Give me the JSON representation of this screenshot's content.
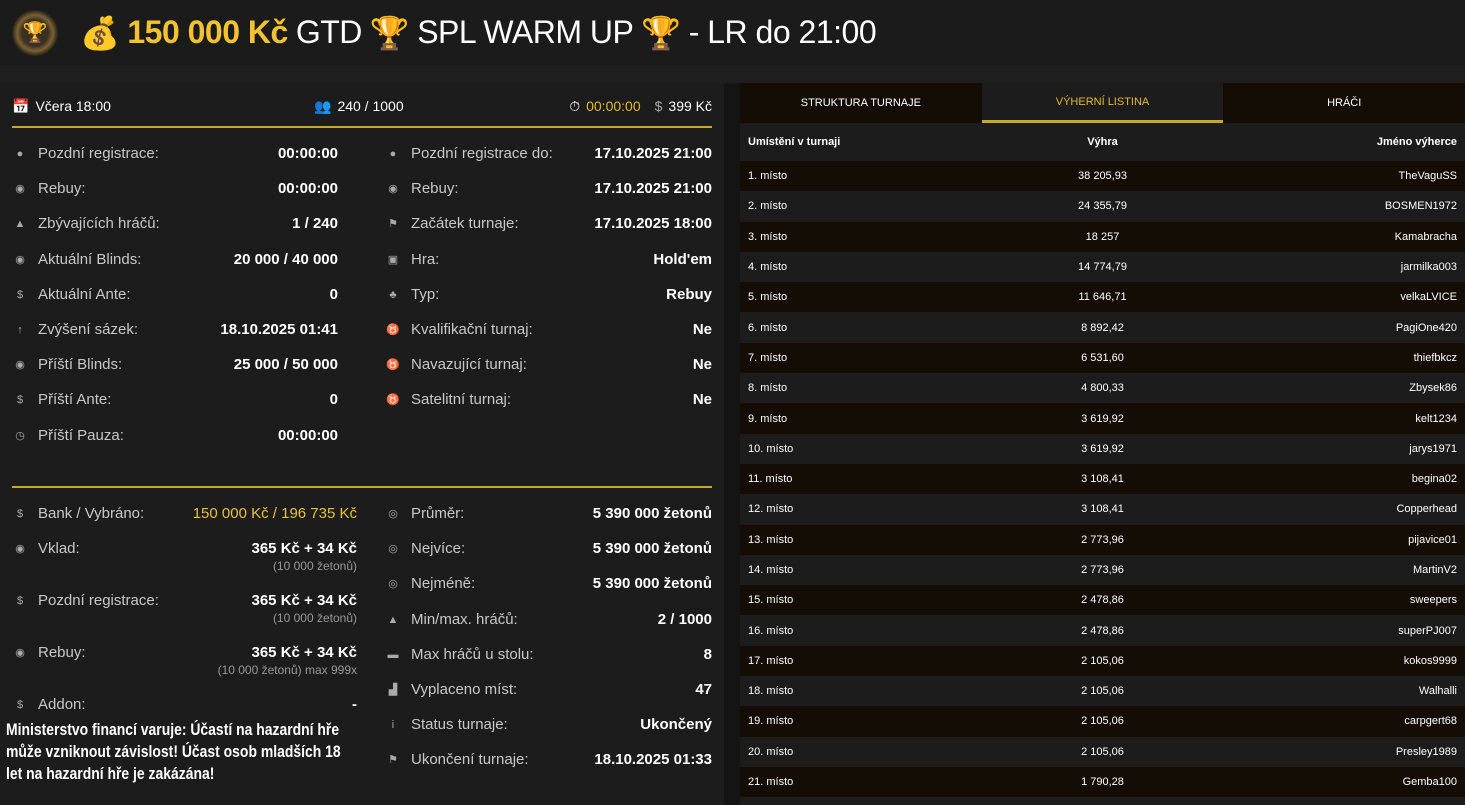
{
  "header": {
    "logo_icon": "trophy-chip-logo",
    "money_icon": "money-bag-icon",
    "guarantee": "150 000 Kč",
    "gtd": "GTD",
    "trophy_icon": "trophy-icon",
    "name": "SPL WARM UP",
    "suffix": "- LR do 21:00"
  },
  "topbar": {
    "date": "Včera 18:00",
    "players": "240 / 1000",
    "timer": "00:00:00",
    "buyin": "399 Kč"
  },
  "left_col": [
    {
      "icon": "user-clock-icon",
      "label": "Pozdní registrace:",
      "value": "00:00:00"
    },
    {
      "icon": "coins-icon",
      "label": "Rebuy:",
      "value": "00:00:00"
    },
    {
      "icon": "users-icon",
      "label": "Zbývajících hráčů:",
      "value": "1 / 240"
    },
    {
      "icon": "coins-icon",
      "label": "Aktuální Blinds:",
      "value": "20 000 / 40 000"
    },
    {
      "icon": "dollar-coin-icon",
      "label": "Aktuální Ante:",
      "value": "0"
    },
    {
      "icon": "arrow-up-circle-icon",
      "label": "Zvýšení sázek:",
      "value": "18.10.2025 01:41"
    },
    {
      "icon": "coins-icon",
      "label": "Příští Blinds:",
      "value": "25 000 / 50 000"
    },
    {
      "icon": "dollar-coin-icon",
      "label": "Příští Ante:",
      "value": "0"
    },
    {
      "icon": "clock-icon",
      "label": "Příští Pauza:",
      "value": "00:00:00"
    }
  ],
  "right_col": [
    {
      "icon": "user-clock-icon",
      "label": "Pozdní registrace do:",
      "value": "17.10.2025 21:00"
    },
    {
      "icon": "coins-icon",
      "label": "Rebuy:",
      "value": "17.10.2025 21:00"
    },
    {
      "icon": "flag-icon",
      "label": "Začátek turnaje:",
      "value": "17.10.2025 18:00"
    },
    {
      "icon": "cards-icon",
      "label": "Hra:",
      "value": "Hold'em"
    },
    {
      "icon": "suits-icon",
      "label": "Typ:",
      "value": "Rebuy"
    },
    {
      "icon": "medal-icon",
      "label": "Kvalifikační turnaj:",
      "value": "Ne"
    },
    {
      "icon": "medal-icon",
      "label": "Navazující turnaj:",
      "value": "Ne"
    },
    {
      "icon": "medal-icon",
      "label": "Satelitní turnaj:",
      "value": "Ne"
    }
  ],
  "bottom_left": [
    {
      "icon": "money-bag-icon",
      "label": "Bank / Vybráno:",
      "value": "150 000 Kč / 196 735 Kč",
      "sub": ""
    },
    {
      "icon": "coins-icon",
      "label": "Vklad:",
      "value": "365 Kč + 34 Kč",
      "sub": "(10 000 žetonů)"
    },
    {
      "icon": "dollar-coin-icon",
      "label": "Pozdní registrace:",
      "value": "365 Kč + 34 Kč",
      "sub": "(10 000 žetonů)"
    },
    {
      "icon": "coins-icon",
      "label": "Rebuy:",
      "value": "365 Kč + 34 Kč",
      "sub": "(10 000 žetonů) max 999x"
    },
    {
      "icon": "dollar-coin-icon",
      "label": "Addon:",
      "value": "-",
      "sub": ""
    }
  ],
  "bottom_right": [
    {
      "icon": "chip-icon",
      "label": "Průměr:",
      "value": "5 390 000 žetonů"
    },
    {
      "icon": "chip-icon",
      "label": "Nejvíce:",
      "value": "5 390 000 žetonů"
    },
    {
      "icon": "chip-icon",
      "label": "Nejméně:",
      "value": "5 390 000 žetonů"
    },
    {
      "icon": "users-icon",
      "label": "Min/max. hráčů:",
      "value": "2 / 1000"
    },
    {
      "icon": "table-icon",
      "label": "Max hráčů u stolu:",
      "value": "8"
    },
    {
      "icon": "podium-icon",
      "label": "Vyplaceno míst:",
      "value": "47"
    },
    {
      "icon": "info-icon",
      "label": "Status turnaje:",
      "value": "Ukončený"
    },
    {
      "icon": "flag-icon",
      "label": "Ukončení turnaje:",
      "value": "18.10.2025 01:33"
    }
  ],
  "warning": "Ministerstvo financí varuje: Účastí na hazardní hře může vzniknout závislost! Účast osob mladších 18 let na hazardní hře je zakázána!",
  "tabs": [
    {
      "label": "STRUKTURA TURNAJE",
      "active": false
    },
    {
      "label": "VÝHERNÍ LISTINA",
      "active": true
    },
    {
      "label": "HRÁČI",
      "active": false
    }
  ],
  "table": {
    "headers": [
      "Umístění v turnaji",
      "Výhra",
      "Jméno výherce"
    ],
    "rows": [
      [
        "1. místo",
        "38 205,93",
        "TheVaguSS"
      ],
      [
        "2. místo",
        "24 355,79",
        "BOSMEN1972"
      ],
      [
        "3. místo",
        "18 257",
        "Kamabracha"
      ],
      [
        "4. místo",
        "14 774,79",
        "jarmilka003"
      ],
      [
        "5. místo",
        "11 646,71",
        "velkaLVICE"
      ],
      [
        "6. místo",
        "8 892,42",
        "PagiOne420"
      ],
      [
        "7. místo",
        "6 531,60",
        "thiefbkcz"
      ],
      [
        "8. místo",
        "4 800,33",
        "Zbysek86"
      ],
      [
        "9. místo",
        "3 619,92",
        "kelt1234"
      ],
      [
        "10. místo",
        "3 619,92",
        "jarys1971"
      ],
      [
        "11. místo",
        "3 108,41",
        "begina02"
      ],
      [
        "12. místo",
        "3 108,41",
        "Copperhead"
      ],
      [
        "13. místo",
        "2 773,96",
        "pijavice01"
      ],
      [
        "14. místo",
        "2 773,96",
        "MartinV2"
      ],
      [
        "15. místo",
        "2 478,86",
        "sweepers"
      ],
      [
        "16. místo",
        "2 478,86",
        "superPJ007"
      ],
      [
        "17. místo",
        "2 105,06",
        "kokos9999"
      ],
      [
        "18. místo",
        "2 105,06",
        "Walhalli"
      ],
      [
        "19. místo",
        "2 105,06",
        "carpgert68"
      ],
      [
        "20. místo",
        "2 105,06",
        "Presley1989"
      ],
      [
        "21. místo",
        "1 790,28",
        "Gemba100"
      ]
    ]
  },
  "colors": {
    "accent": "#c9a92c",
    "gold_text": "#f2c230",
    "bg": "#1c1c1c",
    "row_dark": "#140d06"
  }
}
